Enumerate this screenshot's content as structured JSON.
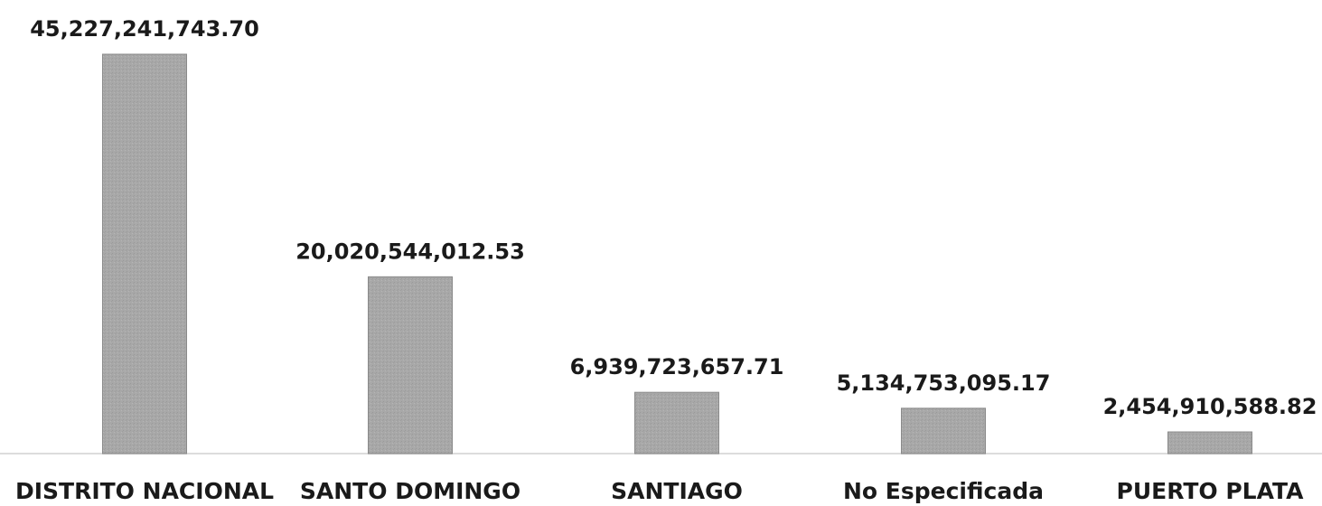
{
  "chart_data": {
    "type": "bar",
    "categories": [
      "DISTRITO NACIONAL",
      "SANTO DOMINGO",
      "SANTIAGO",
      "No Especificada",
      "PUERTO PLATA"
    ],
    "values": [
      45227241743.7,
      20020544012.53,
      6939723657.71,
      5134753095.17,
      2454910588.82
    ],
    "data_labels": [
      "45,227,241,743.70",
      "20,020,544,012.53",
      "6,939,723,657.71",
      "5,134,753,095.17",
      "2,454,910,588.82"
    ],
    "title": "",
    "xlabel": "",
    "ylabel": "",
    "ylim": [
      0,
      45227241743.7
    ],
    "grid": false,
    "legend": "none",
    "colors": {
      "bar": "#a9a9a9",
      "axis": "#d9d9d9",
      "text": "#1a1a1a"
    }
  }
}
